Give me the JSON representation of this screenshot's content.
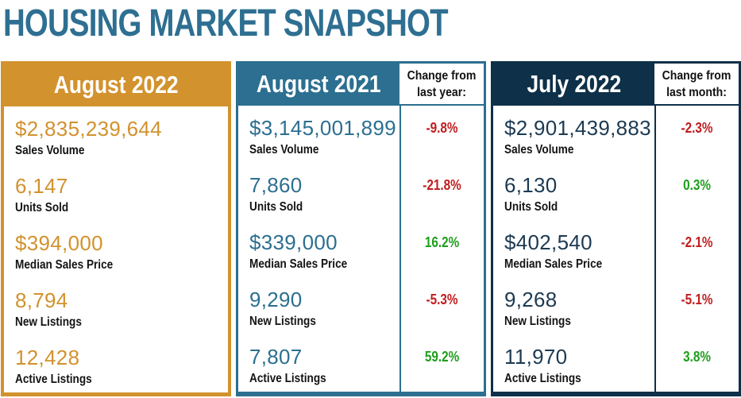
{
  "title": "HOUSING MARKET SNAPSHOT",
  "colors": {
    "gold": "#D2922E",
    "teal": "#2C6F90",
    "navy": "#0E3048",
    "navy_value": "#1C3A52",
    "red": "#C01D1E",
    "green": "#1E9E1C",
    "label": "#141414",
    "title": "#2E6F92"
  },
  "tables": [
    {
      "header": "August 2022",
      "rows": [
        {
          "value": "$2,835,239,644",
          "label": "Sales Volume"
        },
        {
          "value": "6,147",
          "label": "Units Sold"
        },
        {
          "value": "$394,000",
          "label": "Median Sales Price"
        },
        {
          "value": "8,794",
          "label": "New Listings"
        },
        {
          "value": "12,428",
          "label": "Active Listings"
        }
      ]
    },
    {
      "header": "August 2021",
      "change_header": "Change from last year:",
      "rows": [
        {
          "value": "$3,145,001,899",
          "label": "Sales Volume",
          "change": "-9.8%",
          "trend": "negative"
        },
        {
          "value": "7,860",
          "label": "Units Sold",
          "change": "-21.8%",
          "trend": "negative"
        },
        {
          "value": "$339,000",
          "label": "Median Sales Price",
          "change": "16.2%",
          "trend": "positive"
        },
        {
          "value": "9,290",
          "label": "New Listings",
          "change": "-5.3%",
          "trend": "negative"
        },
        {
          "value": "7,807",
          "label": "Active Listings",
          "change": "59.2%",
          "trend": "positive"
        }
      ]
    },
    {
      "header": "July 2022",
      "change_header": "Change from last month:",
      "rows": [
        {
          "value": "$2,901,439,883",
          "label": "Sales Volume",
          "change": "-2.3%",
          "trend": "negative"
        },
        {
          "value": "6,130",
          "label": "Units Sold",
          "change": "0.3%",
          "trend": "positive"
        },
        {
          "value": "$402,540",
          "label": "Median Sales Price",
          "change": "-2.1%",
          "trend": "negative"
        },
        {
          "value": "9,268",
          "label": "New Listings",
          "change": "-5.1%",
          "trend": "negative"
        },
        {
          "value": "11,970",
          "label": "Active Listings",
          "change": "3.8%",
          "trend": "positive"
        }
      ]
    }
  ],
  "chart_data": {
    "type": "table",
    "title": "HOUSING MARKET SNAPSHOT",
    "metrics": [
      "Sales Volume",
      "Units Sold",
      "Median Sales Price",
      "New Listings",
      "Active Listings"
    ],
    "periods": [
      {
        "label": "August 2022",
        "values": [
          "$2,835,239,644",
          "6,147",
          "$394,000",
          "8,794",
          "12,428"
        ]
      },
      {
        "label": "August 2021",
        "values": [
          "$3,145,001,899",
          "7,860",
          "$339,000",
          "9,290",
          "7,807"
        ],
        "change_label": "Change from last year:",
        "changes": [
          "-9.8%",
          "-21.8%",
          "16.2%",
          "-5.3%",
          "59.2%"
        ]
      },
      {
        "label": "July 2022",
        "values": [
          "$2,901,439,883",
          "6,130",
          "$402,540",
          "9,268",
          "11,970"
        ],
        "change_label": "Change from last month:",
        "changes": [
          "-2.3%",
          "0.3%",
          "-2.1%",
          "-5.1%",
          "3.8%"
        ]
      }
    ]
  }
}
